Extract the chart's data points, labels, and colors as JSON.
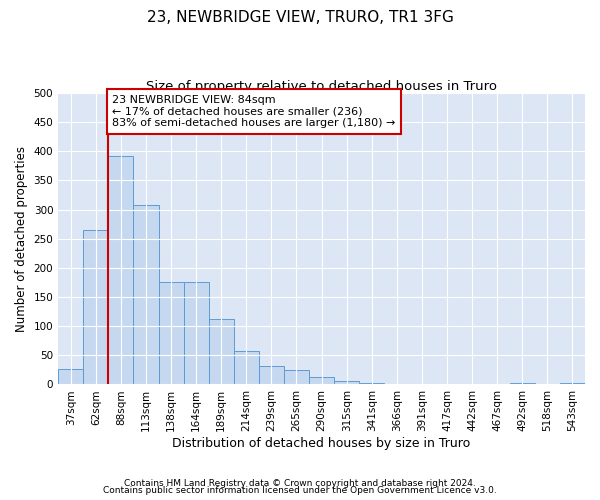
{
  "title": "23, NEWBRIDGE VIEW, TRURO, TR1 3FG",
  "subtitle": "Size of property relative to detached houses in Truro",
  "xlabel": "Distribution of detached houses by size in Truro",
  "ylabel": "Number of detached properties",
  "categories": [
    "37sqm",
    "62sqm",
    "88sqm",
    "113sqm",
    "138sqm",
    "164sqm",
    "189sqm",
    "214sqm",
    "239sqm",
    "265sqm",
    "290sqm",
    "315sqm",
    "341sqm",
    "366sqm",
    "391sqm",
    "417sqm",
    "442sqm",
    "467sqm",
    "492sqm",
    "518sqm",
    "543sqm"
  ],
  "values": [
    27,
    265,
    392,
    308,
    175,
    175,
    113,
    57,
    32,
    25,
    12,
    6,
    2,
    1,
    0,
    0,
    0,
    0,
    3,
    0,
    3
  ],
  "bar_color": "#c5d8f0",
  "bar_edge_color": "#5b9bd5",
  "background_color": "#ffffff",
  "plot_bg_color": "#dce6f5",
  "grid_color": "#ffffff",
  "vline_x_pos": 1.5,
  "vline_color": "#cc0000",
  "annotation_text": "23 NEWBRIDGE VIEW: 84sqm\n← 17% of detached houses are smaller (236)\n83% of semi-detached houses are larger (1,180) →",
  "annotation_box_color": "#cc0000",
  "ylim": [
    0,
    500
  ],
  "yticks": [
    0,
    50,
    100,
    150,
    200,
    250,
    300,
    350,
    400,
    450,
    500
  ],
  "footer1": "Contains HM Land Registry data © Crown copyright and database right 2024.",
  "footer2": "Contains public sector information licensed under the Open Government Licence v3.0.",
  "title_fontsize": 11,
  "subtitle_fontsize": 9.5,
  "xlabel_fontsize": 9,
  "ylabel_fontsize": 8.5,
  "tick_fontsize": 7.5,
  "annotation_fontsize": 8,
  "footer_fontsize": 6.5
}
